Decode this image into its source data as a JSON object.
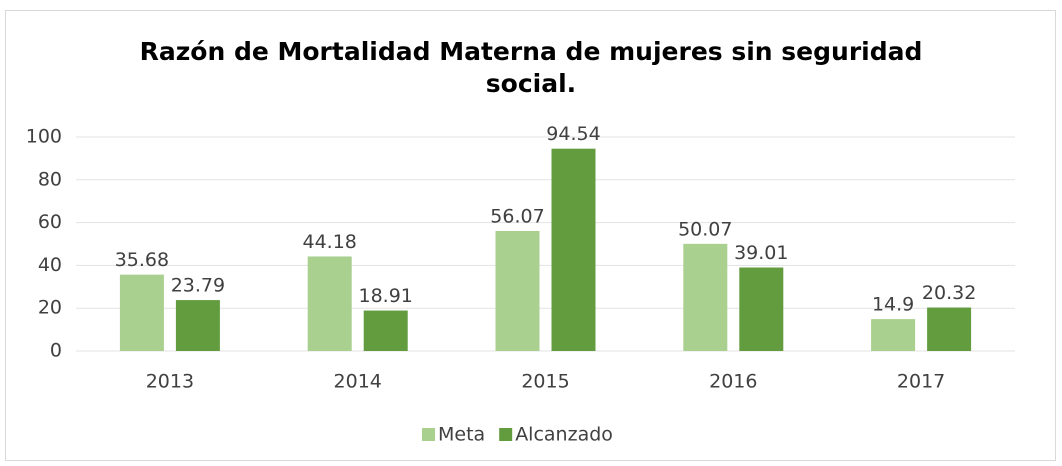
{
  "chart_data": {
    "type": "bar",
    "title": "Razón de Mortalidad Materna de mujeres sin seguridad social.",
    "categories": [
      "2013",
      "2014",
      "2015",
      "2016",
      "2017"
    ],
    "series": [
      {
        "name": "Meta",
        "color": "#a9d08e",
        "values": [
          35.68,
          44.18,
          56.07,
          50.07,
          14.9
        ]
      },
      {
        "name": "Alcanzado",
        "color": "#629c3f",
        "values": [
          23.79,
          18.91,
          94.54,
          39.01,
          20.32
        ]
      }
    ],
    "ylim": [
      0,
      100
    ],
    "yticks": [
      0,
      20,
      40,
      60,
      80,
      100
    ],
    "grid": true,
    "legend": "bottom"
  }
}
